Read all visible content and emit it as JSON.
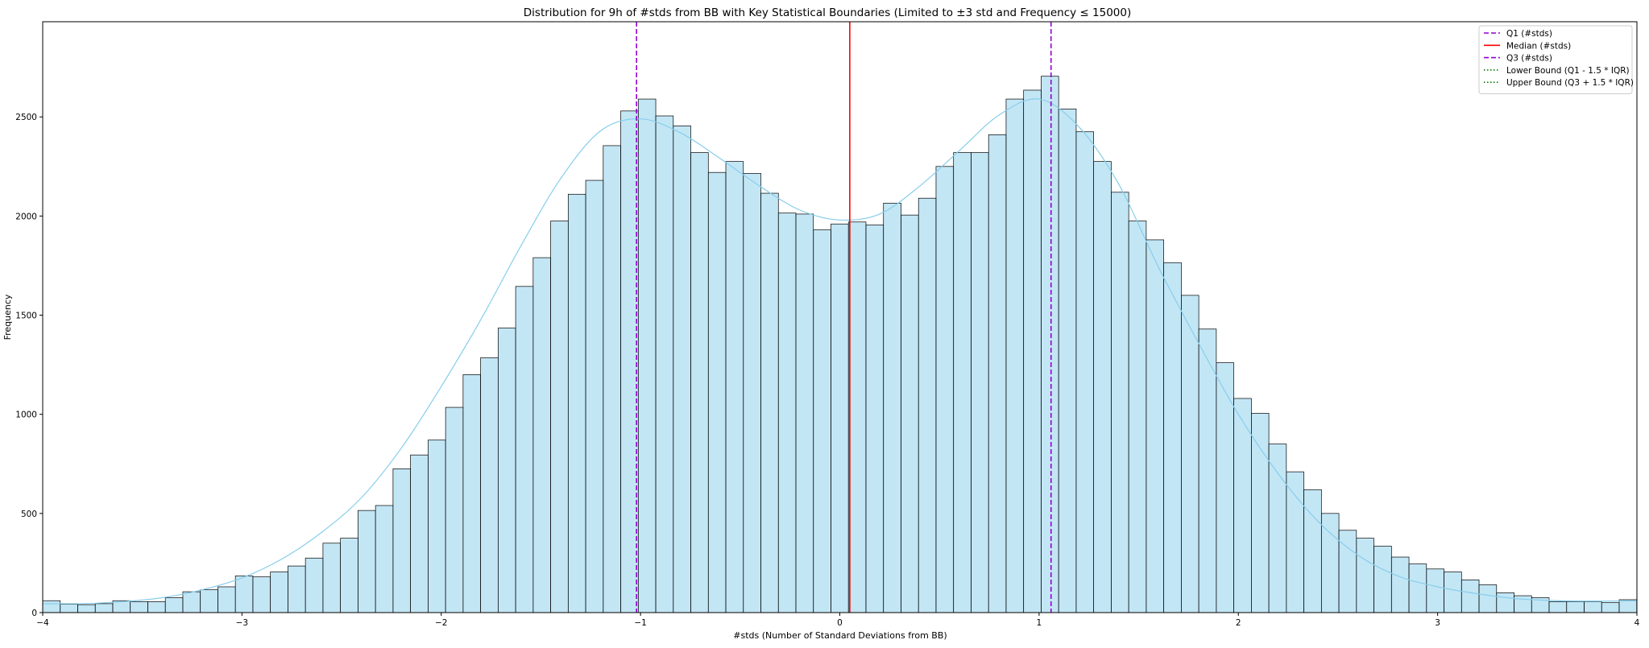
{
  "chart_data": {
    "type": "bar",
    "title": "Distribution for 9h of #stds from BB with Key Statistical Boundaries (Limited to ±3 std and Frequency ≤ 15000)",
    "xlabel": "#stds (Number of Standard Deviations from BB)",
    "ylabel": "Frequency",
    "xlim": [
      -4,
      4
    ],
    "ylim": [
      0,
      2980
    ],
    "xticks": [
      -4,
      -3,
      -2,
      -1,
      0,
      1,
      2,
      3,
      4
    ],
    "xtick_labels": [
      "−4",
      "−3",
      "−2",
      "−1",
      "0",
      "1",
      "2",
      "3",
      "4"
    ],
    "yticks": [
      0,
      500,
      1000,
      1500,
      2000,
      2500
    ],
    "ytick_labels": [
      "0",
      "500",
      "1000",
      "1500",
      "2000",
      "2500"
    ],
    "bin_start": -4,
    "bin_width": 0.0879,
    "values": [
      60,
      42,
      40,
      45,
      60,
      55,
      55,
      75,
      105,
      115,
      130,
      185,
      180,
      205,
      235,
      275,
      350,
      375,
      515,
      540,
      725,
      795,
      870,
      1035,
      1200,
      1285,
      1435,
      1645,
      1790,
      1975,
      2110,
      2180,
      2355,
      2530,
      2590,
      2505,
      2455,
      2320,
      2220,
      2275,
      2215,
      2115,
      2015,
      2010,
      1930,
      1960,
      1970,
      1955,
      2065,
      2005,
      2090,
      2250,
      2320,
      2320,
      2410,
      2590,
      2635,
      2705,
      2540,
      2425,
      2275,
      2120,
      1975,
      1880,
      1765,
      1600,
      1430,
      1260,
      1080,
      1005,
      850,
      710,
      620,
      500,
      415,
      375,
      335,
      280,
      245,
      220,
      205,
      165,
      140,
      100,
      85,
      75,
      55,
      55,
      55,
      50,
      65
    ],
    "kde": {
      "x": [
        -4,
        -3.8,
        -3.6,
        -3.4,
        -3.2,
        -3.0,
        -2.8,
        -2.6,
        -2.4,
        -2.2,
        -2.0,
        -1.8,
        -1.6,
        -1.4,
        -1.2,
        -1.0,
        -0.8,
        -0.6,
        -0.4,
        -0.2,
        0.0,
        0.2,
        0.4,
        0.6,
        0.8,
        1.0,
        1.2,
        1.4,
        1.6,
        1.8,
        2.0,
        2.2,
        2.4,
        2.6,
        2.8,
        3.0,
        3.2,
        3.4,
        3.6,
        3.8,
        4.0
      ],
      "y": [
        45,
        45,
        55,
        75,
        115,
        175,
        270,
        405,
        580,
        830,
        1140,
        1480,
        1850,
        2190,
        2430,
        2490,
        2420,
        2290,
        2150,
        2030,
        1980,
        2010,
        2150,
        2330,
        2510,
        2590,
        2450,
        2160,
        1740,
        1360,
        1000,
        700,
        460,
        290,
        185,
        130,
        95,
        70,
        60,
        58,
        60
      ]
    },
    "vlines": [
      {
        "name": "Q1 (#stds)",
        "x": -1.02,
        "color": "#9400d3",
        "style": "dashed"
      },
      {
        "name": "Median (#stds)",
        "x": 0.05,
        "color": "#ff0000",
        "style": "solid"
      },
      {
        "name": "Q3 (#stds)",
        "x": 1.06,
        "color": "#9400d3",
        "style": "dashed"
      }
    ],
    "legend": [
      {
        "label": "Q1 (#stds)",
        "color": "#9400d3",
        "style": "dashed"
      },
      {
        "label": "Median (#stds)",
        "color": "#ff0000",
        "style": "solid"
      },
      {
        "label": "Q3 (#stds)",
        "color": "#9400d3",
        "style": "dashed"
      },
      {
        "label": "Lower Bound (Q1 - 1.5 * IQR)",
        "color": "#008000",
        "style": "dotted"
      },
      {
        "label": "Upper Bound (Q3 + 1.5 * IQR)",
        "color": "#008000",
        "style": "dotted"
      }
    ],
    "legend_position": "top-right",
    "colors": {
      "bar_fill": "#87ceeb",
      "bar_edge": "#000000",
      "kde": "#87ceeb"
    }
  }
}
